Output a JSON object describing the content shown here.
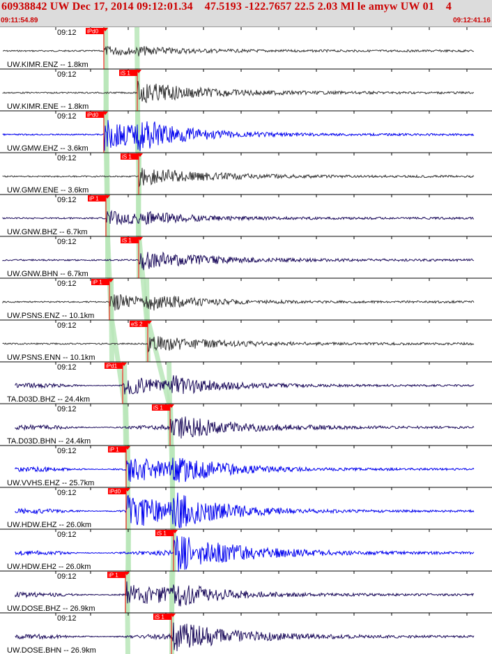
{
  "header": {
    "title": "60938842 UW Dec 17, 2014 09:12:01.34    47.5193 -122.7657 22.5 2.03 Ml le amyw UW 01    4",
    "start_time": "09:11:54.89",
    "end_time": "09:12:41.16"
  },
  "colors": {
    "header_bg": "#dcdcdc",
    "title": "#cc0000",
    "pick": "#ff0000",
    "green_band": "#b9e6b9",
    "trace_gray": "#333333",
    "trace_blue": "#0000ee",
    "trace_navy": "#1a0a5a"
  },
  "traces": [
    {
      "label": "UW.KIMR.ENZ -- 1.8km",
      "time": "09:12",
      "pick": "iPd0",
      "color": "#333333",
      "amp": 6,
      "pick_kind": "P"
    },
    {
      "label": "UW.KIMR.ENE -- 1.8km",
      "time": "09:12",
      "pick": "iS 1",
      "color": "#333333",
      "amp": 16,
      "pick_kind": "S"
    },
    {
      "label": "UW.GMW.EHZ -- 3.6km",
      "time": "09:12",
      "pick": "iPd0",
      "color": "#0000ee",
      "amp": 22,
      "pick_kind": "P"
    },
    {
      "label": "UW.GMW.ENE -- 3.6km",
      "time": "09:12",
      "pick": "iS 1",
      "color": "#333333",
      "amp": 14,
      "pick_kind": "S"
    },
    {
      "label": "UW.GNW.BHZ -- 6.7km",
      "time": "09:12",
      "pick": "iP 1",
      "color": "#1a0a5a",
      "amp": 10,
      "pick_kind": "P"
    },
    {
      "label": "UW.GNW.BHN -- 6.7km",
      "time": "09:12",
      "pick": "iS 1",
      "color": "#1a0a5a",
      "amp": 14,
      "pick_kind": "S"
    },
    {
      "label": "UW.PSNS.ENZ -- 10.1km",
      "time": "09:12",
      "pick": "iP 1",
      "color": "#333333",
      "amp": 12,
      "pick_kind": "P"
    },
    {
      "label": "UW.PSNS.ENN -- 10.1km",
      "time": "09:12",
      "pick": "eS 2",
      "color": "#333333",
      "amp": 12,
      "pick_kind": "S"
    },
    {
      "label": "TA.D03D.BHZ -- 24.4km",
      "time": "09:12",
      "pick": "iPd1",
      "color": "#1a0a5a",
      "amp": 14,
      "pick_kind": "P"
    },
    {
      "label": "TA.D03D.BHN -- 24.4km",
      "time": "09:12",
      "pick": "iS 1",
      "color": "#1a0a5a",
      "amp": 18,
      "pick_kind": "S"
    },
    {
      "label": "UW.VVHS.EHZ -- 25.7km",
      "time": "09:12",
      "pick": "iP 1",
      "color": "#0000ee",
      "amp": 20,
      "pick_kind": "P"
    },
    {
      "label": "UW.HDW.EHZ -- 26.0km",
      "time": "09:12",
      "pick": "iPd0",
      "color": "#0000ee",
      "amp": 26,
      "pick_kind": "P"
    },
    {
      "label": "UW.HDW.EH2 -- 26.0km",
      "time": "09:12",
      "pick": "iS 1",
      "color": "#0000ee",
      "amp": 28,
      "pick_kind": "S"
    },
    {
      "label": "UW.DOSE.BHZ -- 26.9km",
      "time": "09:12",
      "pick": "iP 1",
      "color": "#1a0a5a",
      "amp": 18,
      "pick_kind": "P"
    },
    {
      "label": "UW.DOSE.BHN -- 26.9km",
      "time": "09:12",
      "pick": "iS 1",
      "color": "#1a0a5a",
      "amp": 22,
      "pick_kind": "S"
    }
  ]
}
